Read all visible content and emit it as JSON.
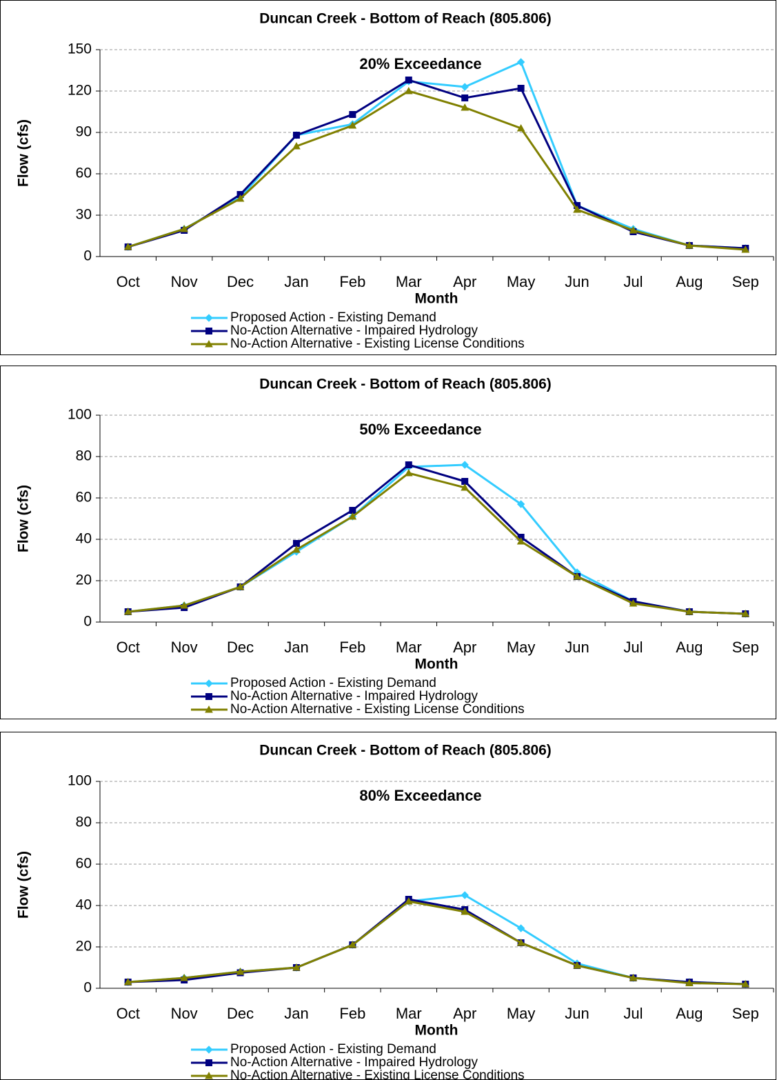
{
  "chart_data": [
    {
      "type": "line",
      "title": "Duncan Creek - Bottom of Reach (805.806)",
      "annotation": "20% Exceedance",
      "x_label": "Month",
      "y_label": "Flow (cfs)",
      "categories": [
        "Oct",
        "Nov",
        "Dec",
        "Jan",
        "Feb",
        "Mar",
        "Apr",
        "May",
        "Jun",
        "Jul",
        "Aug",
        "Sep"
      ],
      "ylim": [
        0,
        150
      ],
      "yticks": [
        0,
        30,
        60,
        90,
        120,
        150
      ],
      "grid": true,
      "series": [
        {
          "name": "Proposed Action - Existing Demand",
          "color": "#33ccff",
          "marker": "diamond",
          "values": [
            7,
            20,
            43,
            88,
            96,
            127,
            123,
            141,
            37,
            20,
            8,
            6
          ]
        },
        {
          "name": "No-Action Alternative - Impaired Hydrology",
          "color": "#000080",
          "marker": "square",
          "values": [
            7,
            19,
            45,
            88,
            103,
            128,
            115,
            122,
            37,
            18,
            8,
            6
          ]
        },
        {
          "name": "No-Action Alternative - Existing License Conditions",
          "color": "#808000",
          "marker": "triangle",
          "values": [
            7,
            20,
            42,
            80,
            95,
            120,
            108,
            93,
            34,
            19,
            8,
            5
          ]
        }
      ]
    },
    {
      "type": "line",
      "title": "Duncan Creek - Bottom of Reach (805.806)",
      "annotation": "50% Exceedance",
      "x_label": "Month",
      "y_label": "Flow (cfs)",
      "categories": [
        "Oct",
        "Nov",
        "Dec",
        "Jan",
        "Feb",
        "Mar",
        "Apr",
        "May",
        "Jun",
        "Jul",
        "Aug",
        "Sep"
      ],
      "ylim": [
        0,
        100
      ],
      "yticks": [
        0,
        20,
        40,
        60,
        80,
        100
      ],
      "grid": true,
      "series": [
        {
          "name": "Proposed Action - Existing Demand",
          "color": "#33ccff",
          "marker": "diamond",
          "values": [
            5,
            8,
            17,
            34,
            51,
            75,
            76,
            57,
            24,
            10,
            5,
            4
          ]
        },
        {
          "name": "No-Action Alternative - Impaired Hydrology",
          "color": "#000080",
          "marker": "square",
          "values": [
            5,
            7,
            17,
            38,
            54,
            76,
            68,
            41,
            22,
            10,
            5,
            4
          ]
        },
        {
          "name": "No-Action Alternative - Existing License Conditions",
          "color": "#808000",
          "marker": "triangle",
          "values": [
            5,
            8,
            17,
            35,
            51,
            72,
            65,
            39,
            22,
            9,
            5,
            4
          ]
        }
      ]
    },
    {
      "type": "line",
      "title": "Duncan Creek - Bottom of Reach (805.806)",
      "annotation": "80% Exceedance",
      "x_label": "Month",
      "y_label": "Flow (cfs)",
      "categories": [
        "Oct",
        "Nov",
        "Dec",
        "Jan",
        "Feb",
        "Mar",
        "Apr",
        "May",
        "Jun",
        "Jul",
        "Aug",
        "Sep"
      ],
      "ylim": [
        0,
        100
      ],
      "yticks": [
        0,
        20,
        40,
        60,
        80,
        100
      ],
      "grid": true,
      "series": [
        {
          "name": "Proposed Action - Existing Demand",
          "color": "#33ccff",
          "marker": "diamond",
          "values": [
            3,
            5,
            8,
            10,
            21,
            42,
            45,
            29,
            12,
            5,
            3,
            2
          ]
        },
        {
          "name": "No-Action Alternative - Impaired Hydrology",
          "color": "#000080",
          "marker": "square",
          "values": [
            3,
            4,
            7.5,
            10,
            21,
            43,
            38,
            22,
            11,
            5,
            3,
            2
          ]
        },
        {
          "name": "No-Action Alternative - Existing License Conditions",
          "color": "#808000",
          "marker": "triangle",
          "values": [
            3,
            5,
            8,
            10,
            21,
            42,
            37,
            22,
            11,
            5,
            2.5,
            2
          ]
        }
      ]
    }
  ]
}
